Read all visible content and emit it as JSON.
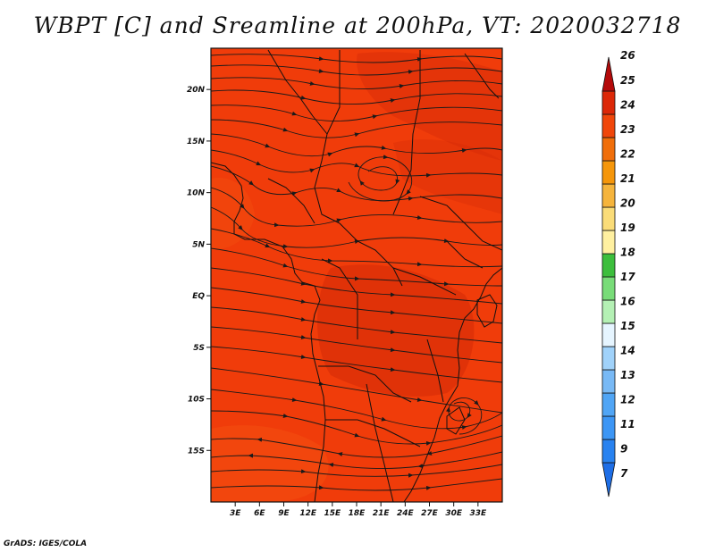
{
  "title": "WBPT [C] and Sreamline at 200hPa, VT: 2020032718",
  "credit": "GrADS: IGES/COLA",
  "map": {
    "lon_range": [
      0,
      36
    ],
    "lat_range": [
      -20,
      24
    ],
    "lat_ticks": [
      {
        "value": 20,
        "label": "20N"
      },
      {
        "value": 15,
        "label": "15N"
      },
      {
        "value": 10,
        "label": "10N"
      },
      {
        "value": 5,
        "label": "5N"
      },
      {
        "value": 0,
        "label": "EQ"
      },
      {
        "value": -5,
        "label": "5S"
      },
      {
        "value": -10,
        "label": "10S"
      },
      {
        "value": -15,
        "label": "15S"
      }
    ],
    "lon_ticks": [
      {
        "value": 3,
        "label": "3E"
      },
      {
        "value": 6,
        "label": "6E"
      },
      {
        "value": 9,
        "label": "9E"
      },
      {
        "value": 12,
        "label": "12E"
      },
      {
        "value": 15,
        "label": "15E"
      },
      {
        "value": 18,
        "label": "18E"
      },
      {
        "value": 21,
        "label": "21E"
      },
      {
        "value": 24,
        "label": "24E"
      },
      {
        "value": 27,
        "label": "27E"
      },
      {
        "value": 30,
        "label": "30E"
      },
      {
        "value": 33,
        "label": "33E"
      }
    ],
    "field_colors": {
      "base": "#f03c0a",
      "warm": "#d42a08",
      "cool": "#f55a14"
    },
    "streamline_color": "#1a1a1a"
  },
  "colorbar": {
    "labels": [
      "7",
      "9",
      "11",
      "12",
      "13",
      "14",
      "15",
      "16",
      "17",
      "18",
      "19",
      "20",
      "21",
      "22",
      "23",
      "24",
      "25",
      "26"
    ],
    "colors": [
      "#1e6ee6",
      "#2882f0",
      "#3c96f5",
      "#50a5f5",
      "#78b9f5",
      "#a0d2fa",
      "#e6f5ff",
      "#b4f0b4",
      "#78dc78",
      "#3cbe3c",
      "#fff0a0",
      "#fadc78",
      "#f5b43c",
      "#f5960a",
      "#f06e0a",
      "#f0460a",
      "#dc2808",
      "#b40a0a"
    ]
  }
}
